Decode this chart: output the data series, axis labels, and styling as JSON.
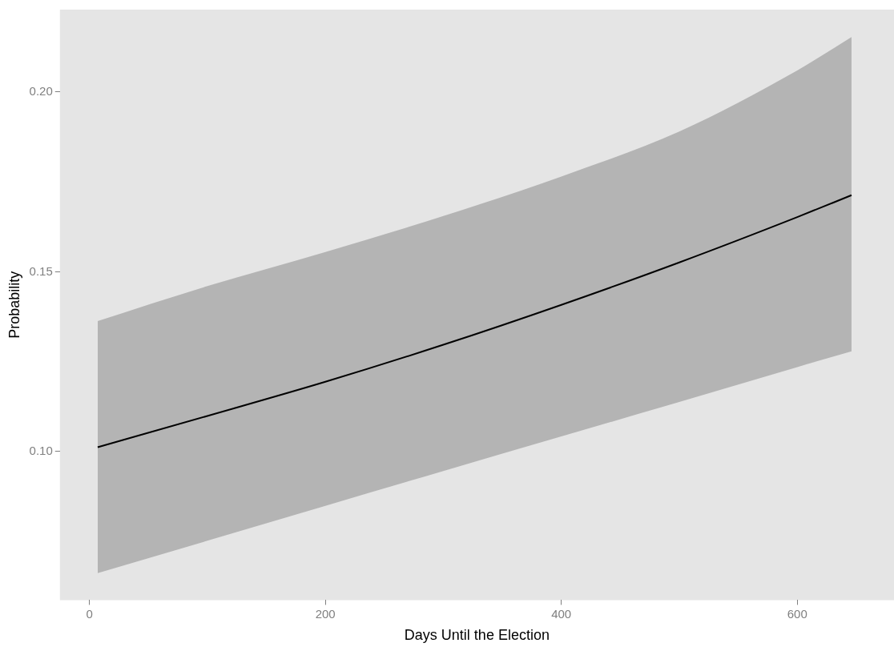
{
  "chart_data": {
    "type": "line",
    "xlabel": "Days Until the Election",
    "ylabel": "Probability",
    "x": [
      7,
      100,
      200,
      300,
      400,
      500,
      600,
      646
    ],
    "series": [
      {
        "color": "#000000",
        "values": [
          0.1012,
          0.1099,
          0.1194,
          0.1297,
          0.1408,
          0.1526,
          0.1652,
          0.1713
        ],
        "lower": [
          0.0662,
          0.0752,
          0.0849,
          0.0946,
          0.1042,
          0.1138,
          0.1235,
          0.1279
        ],
        "upper": [
          0.1363,
          0.146,
          0.1555,
          0.1655,
          0.1765,
          0.189,
          0.206,
          0.2153
        ]
      }
    ],
    "xlim": [
      -25,
      682
    ],
    "xticks": [
      0,
      200,
      400,
      600
    ],
    "ylim": [
      0.0587,
      0.2229
    ],
    "yticks": [
      {
        "value": 0.1,
        "label": "0.10"
      },
      {
        "value": 0.15,
        "label": "0.15"
      },
      {
        "value": 0.2,
        "label": "0.20"
      }
    ],
    "grid": false,
    "legend": false,
    "marker": "none",
    "line_style": "solid"
  }
}
